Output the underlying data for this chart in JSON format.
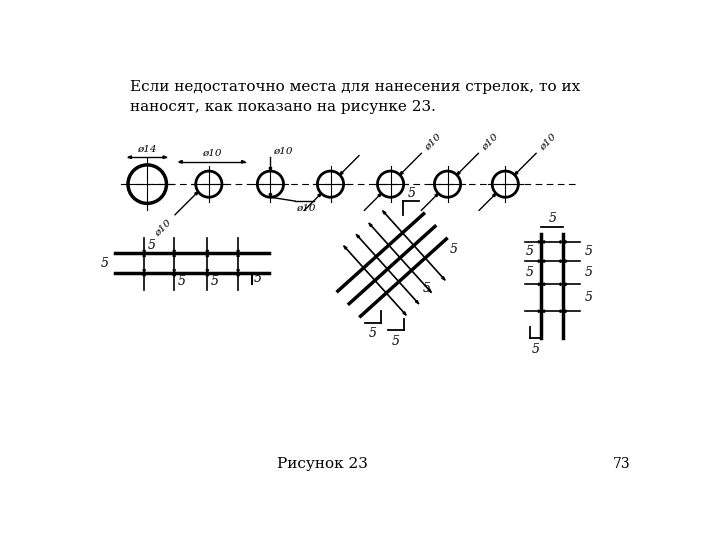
{
  "title_text": "Если недостаточно места для нанесения стрелок, то их\nнаносят, как показано на рисунке 23.",
  "caption": "Рисунок 23",
  "page_num": "73",
  "bg_color": "#ffffff",
  "line_color": "#000000"
}
